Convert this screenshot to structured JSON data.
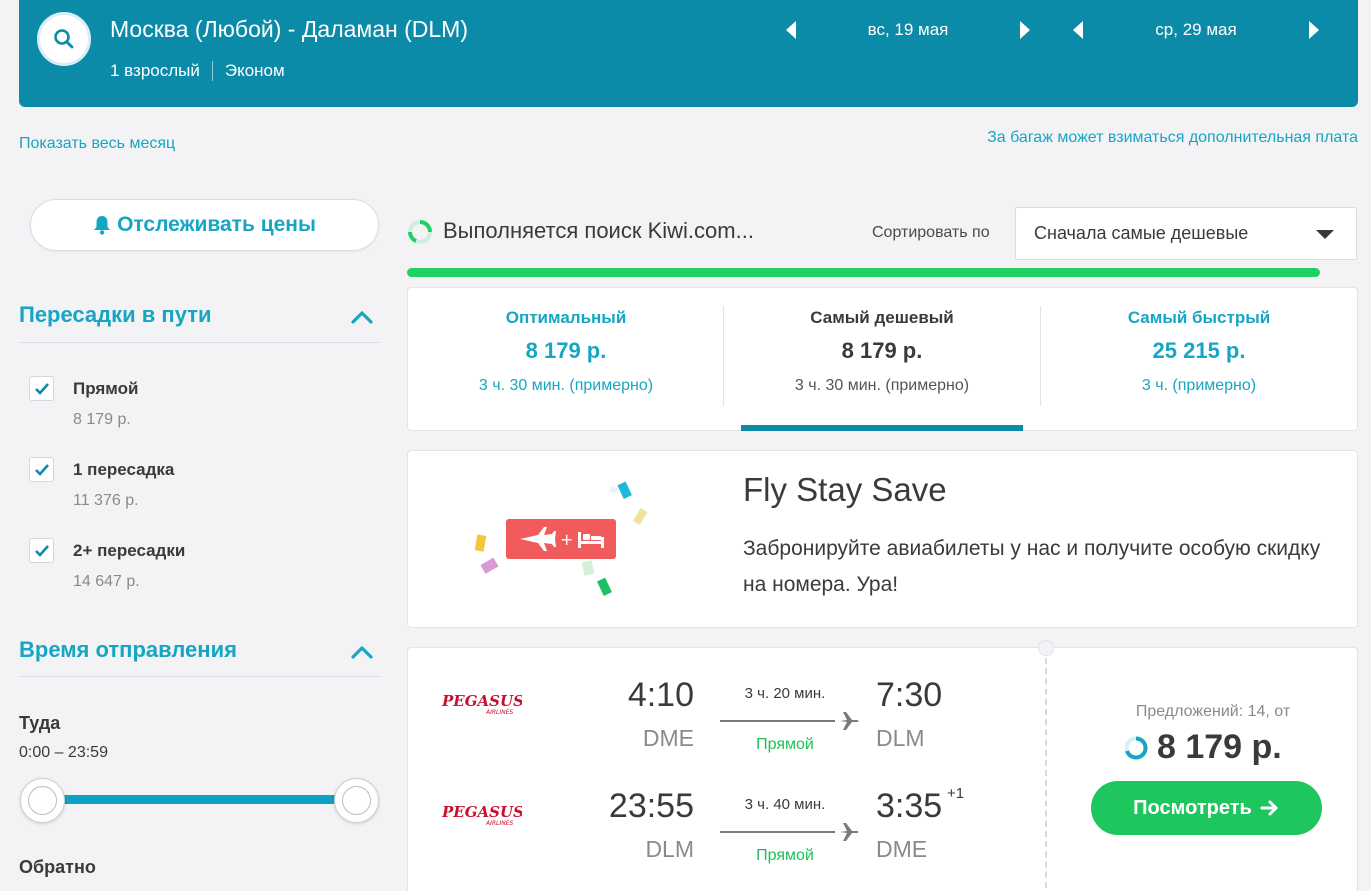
{
  "header": {
    "route": "Москва (Любой) - Даламан (DLM)",
    "passengers": "1 взрослый",
    "cabin": "Эконом",
    "depart_date": "вс, 19 мая",
    "return_date": "ср, 29 мая"
  },
  "links": {
    "show_month": "Показать весь месяц",
    "baggage_note": "За багаж может взиматься дополнительная плата"
  },
  "sidebar": {
    "watch_prices": "Отслеживать цены",
    "stops_title": "Пересадки в пути",
    "stops": [
      {
        "label": "Прямой",
        "price": "8 179 р."
      },
      {
        "label": "1 пересадка",
        "price": "11 376 р."
      },
      {
        "label": "2+ пересадки",
        "price": "14 647 р."
      }
    ],
    "departure_title": "Время отправления",
    "outbound_label": "Туда",
    "outbound_range": "0:00 – 23:59",
    "return_label": "Обратно"
  },
  "search": {
    "status": "Выполняется поиск Kiwi.com...",
    "sort_label": "Сортировать по",
    "sort_value": "Сначала самые дешевые",
    "progress_percent": 96
  },
  "tabs": [
    {
      "title": "Оптимальный",
      "price": "8 179 р.",
      "duration": "3 ч. 30 мин. (примерно)"
    },
    {
      "title": "Самый дешевый",
      "price": "8 179 р.",
      "duration": "3 ч. 30 мин. (примерно)"
    },
    {
      "title": "Самый быстрый",
      "price": "25 215 р.",
      "duration": "3 ч. (примерно)"
    }
  ],
  "promo": {
    "title": "Fly Stay Save",
    "text": "Забронируйте авиабилеты у нас и получите особую скидку на номера. Ура!"
  },
  "flight": {
    "airline": "Pegasus Airlines",
    "outbound": {
      "dep_time": "4:10",
      "dep_code": "DME",
      "duration": "3 ч. 20 мин.",
      "stops": "Прямой",
      "arr_time": "7:30",
      "arr_code": "DLM"
    },
    "return": {
      "dep_time": "23:55",
      "dep_code": "DLM",
      "duration": "3 ч. 40 мин.",
      "stops": "Прямой",
      "arr_time": "3:35",
      "arr_day_offset": "+1",
      "arr_code": "DME"
    },
    "offers": "Предложений: 14, от",
    "price": "8 179 р.",
    "view_button": "Посмотреть"
  },
  "colors": {
    "header_bg": "#0c8ba8",
    "accent": "#16a6c4",
    "green": "#1ec65e",
    "pegasus_red": "#c8102e"
  }
}
